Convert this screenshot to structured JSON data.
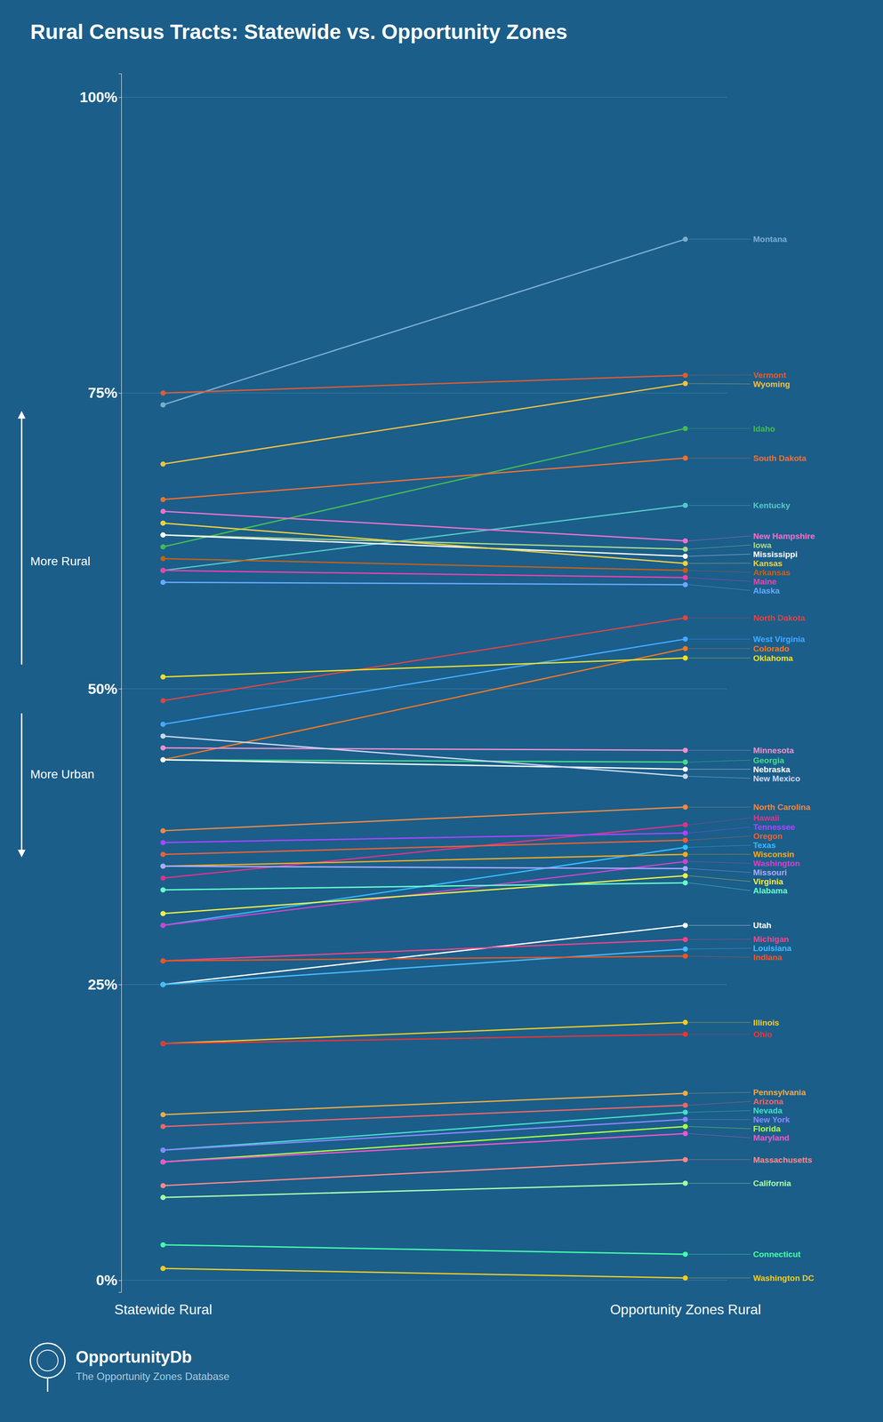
{
  "chart_data": {
    "type": "slope",
    "title": "Rural Census Tracts: Statewide vs. Opportunity Zones",
    "categories": [
      "Statewide Rural",
      "Opportunity Zones Rural"
    ],
    "annotations": [
      "More Rural",
      "More Urban",
      "OpportunityDb",
      "The Opportunity Zones Database"
    ],
    "ylim": [
      -0.01,
      1.02
    ],
    "yticks": [
      {
        "value": 0.0,
        "label": "0%"
      },
      {
        "value": 0.25,
        "label": "25%"
      },
      {
        "value": 0.5,
        "label": "50%"
      },
      {
        "value": 0.75,
        "label": "75%"
      },
      {
        "value": 1.0,
        "label": "100%"
      }
    ],
    "grid": true,
    "series": [
      {
        "name": "Montana",
        "color": "#7aadd4",
        "values": [
          0.74,
          0.88
        ]
      },
      {
        "name": "Vermont",
        "color": "#e05c2e",
        "values": [
          0.75,
          0.765
        ]
      },
      {
        "name": "Wyoming",
        "color": "#f0c040",
        "values": [
          0.69,
          0.758
        ]
      },
      {
        "name": "Idaho",
        "color": "#44bb55",
        "values": [
          0.62,
          0.72
        ]
      },
      {
        "name": "South Dakota",
        "color": "#f07030",
        "values": [
          0.66,
          0.695
        ]
      },
      {
        "name": "Kentucky",
        "color": "#55c8c8",
        "values": [
          0.6,
          0.655
        ]
      },
      {
        "name": "New Hampshire",
        "color": "#f070cc",
        "values": [
          0.65,
          0.625
        ]
      },
      {
        "name": "Iowa",
        "color": "#aad888",
        "values": [
          0.63,
          0.618
        ]
      },
      {
        "name": "Mississippi",
        "color": "#ffffff",
        "values": [
          0.63,
          0.612
        ]
      },
      {
        "name": "Kansas",
        "color": "#f0d040",
        "values": [
          0.64,
          0.606
        ]
      },
      {
        "name": "Arkansas",
        "color": "#c86010",
        "values": [
          0.61,
          0.6
        ]
      },
      {
        "name": "Maine",
        "color": "#f040aa",
        "values": [
          0.6,
          0.594
        ]
      },
      {
        "name": "Alaska",
        "color": "#66aaff",
        "values": [
          0.59,
          0.588
        ]
      },
      {
        "name": "North Dakota",
        "color": "#dd4444",
        "values": [
          0.49,
          0.56
        ]
      },
      {
        "name": "West Virginia",
        "color": "#44aaff",
        "values": [
          0.47,
          0.542
        ]
      },
      {
        "name": "Colorado",
        "color": "#f07820",
        "values": [
          0.44,
          0.534
        ]
      },
      {
        "name": "Oklahoma",
        "color": "#f0e020",
        "values": [
          0.51,
          0.526
        ]
      },
      {
        "name": "Minnesota",
        "color": "#f090cc",
        "values": [
          0.45,
          0.448
        ]
      },
      {
        "name": "Georgia",
        "color": "#44dd88",
        "values": [
          0.44,
          0.438
        ]
      },
      {
        "name": "Nebraska",
        "color": "#ffffff",
        "values": [
          0.44,
          0.432
        ]
      },
      {
        "name": "New Mexico",
        "color": "#ccd8f0",
        "values": [
          0.46,
          0.426
        ]
      },
      {
        "name": "North Carolina",
        "color": "#f08840",
        "values": [
          0.38,
          0.4
        ]
      },
      {
        "name": "Hawaii",
        "color": "#dd3388",
        "values": [
          0.34,
          0.385
        ]
      },
      {
        "name": "Tennessee",
        "color": "#aa44ff",
        "values": [
          0.37,
          0.378
        ]
      },
      {
        "name": "Oregon",
        "color": "#f06030",
        "values": [
          0.36,
          0.372
        ]
      },
      {
        "name": "Texas",
        "color": "#33bbff",
        "values": [
          0.3,
          0.366
        ]
      },
      {
        "name": "Wisconsin",
        "color": "#f0aa20",
        "values": [
          0.35,
          0.36
        ]
      },
      {
        "name": "Washington",
        "color": "#cc44cc",
        "values": [
          0.3,
          0.354
        ]
      },
      {
        "name": "Missouri",
        "color": "#aaaaff",
        "values": [
          0.35,
          0.348
        ]
      },
      {
        "name": "Virginia",
        "color": "#f0f040",
        "values": [
          0.31,
          0.342
        ]
      },
      {
        "name": "Alabama",
        "color": "#66ffcc",
        "values": [
          0.33,
          0.336
        ]
      },
      {
        "name": "Utah",
        "color": "#ffffff",
        "values": [
          0.25,
          0.3
        ]
      },
      {
        "name": "Michigan",
        "color": "#f04488",
        "values": [
          0.27,
          0.288
        ]
      },
      {
        "name": "Louisiana",
        "color": "#44bbff",
        "values": [
          0.25,
          0.28
        ]
      },
      {
        "name": "Indiana",
        "color": "#f05520",
        "values": [
          0.27,
          0.274
        ]
      },
      {
        "name": "Illinois",
        "color": "#f0cc20",
        "values": [
          0.2,
          0.218
        ]
      },
      {
        "name": "Ohio",
        "color": "#ee3333",
        "values": [
          0.2,
          0.208
        ]
      },
      {
        "name": "Pennsylvania",
        "color": "#f0aa44",
        "values": [
          0.14,
          0.158
        ]
      },
      {
        "name": "Arizona",
        "color": "#ee6666",
        "values": [
          0.13,
          0.148
        ]
      },
      {
        "name": "Nevada",
        "color": "#44ddcc",
        "values": [
          0.11,
          0.142
        ]
      },
      {
        "name": "New York",
        "color": "#8888ff",
        "values": [
          0.11,
          0.136
        ]
      },
      {
        "name": "Florida",
        "color": "#aaff44",
        "values": [
          0.1,
          0.13
        ]
      },
      {
        "name": "Maryland",
        "color": "#f055cc",
        "values": [
          0.1,
          0.124
        ]
      },
      {
        "name": "Massachusetts",
        "color": "#ff8888",
        "values": [
          0.08,
          0.102
        ]
      },
      {
        "name": "California",
        "color": "#aaffaa",
        "values": [
          0.07,
          0.082
        ]
      },
      {
        "name": "Connecticut",
        "color": "#44ffaa",
        "values": [
          0.03,
          0.022
        ]
      },
      {
        "name": "Washington DC",
        "color": "#f0cc20",
        "values": [
          0.01,
          0.002
        ]
      }
    ]
  }
}
